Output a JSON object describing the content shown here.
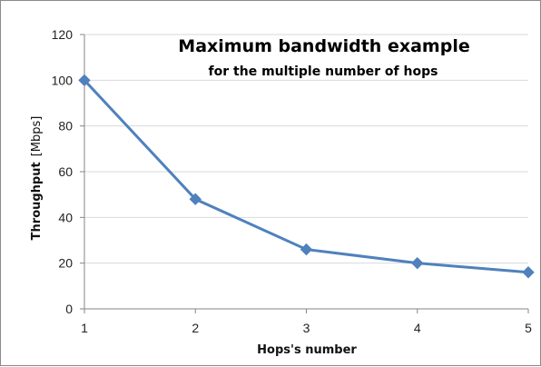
{
  "chart_data": {
    "type": "line",
    "title": "Maximum bandwidth example",
    "subtitle": "for the multiple number of hops",
    "xlabel": "Hops's number",
    "ylabel": "Throughput",
    "ylabel_unit": "[Mbps]",
    "x": [
      1,
      2,
      3,
      4,
      5
    ],
    "x_tick_labels": [
      "1",
      "2",
      "3",
      "4",
      "5"
    ],
    "ylim": [
      0,
      120
    ],
    "y_ticks": [
      0,
      20,
      40,
      60,
      80,
      100,
      120
    ],
    "y_tick_labels": [
      "0",
      "20",
      "40",
      "60",
      "80",
      "100",
      "120"
    ],
    "grid": "horizontal",
    "legend": "none",
    "series": [
      {
        "values": [
          100,
          48,
          26,
          20,
          16
        ],
        "color": "#4F81BD",
        "marker": "diamond"
      }
    ]
  }
}
